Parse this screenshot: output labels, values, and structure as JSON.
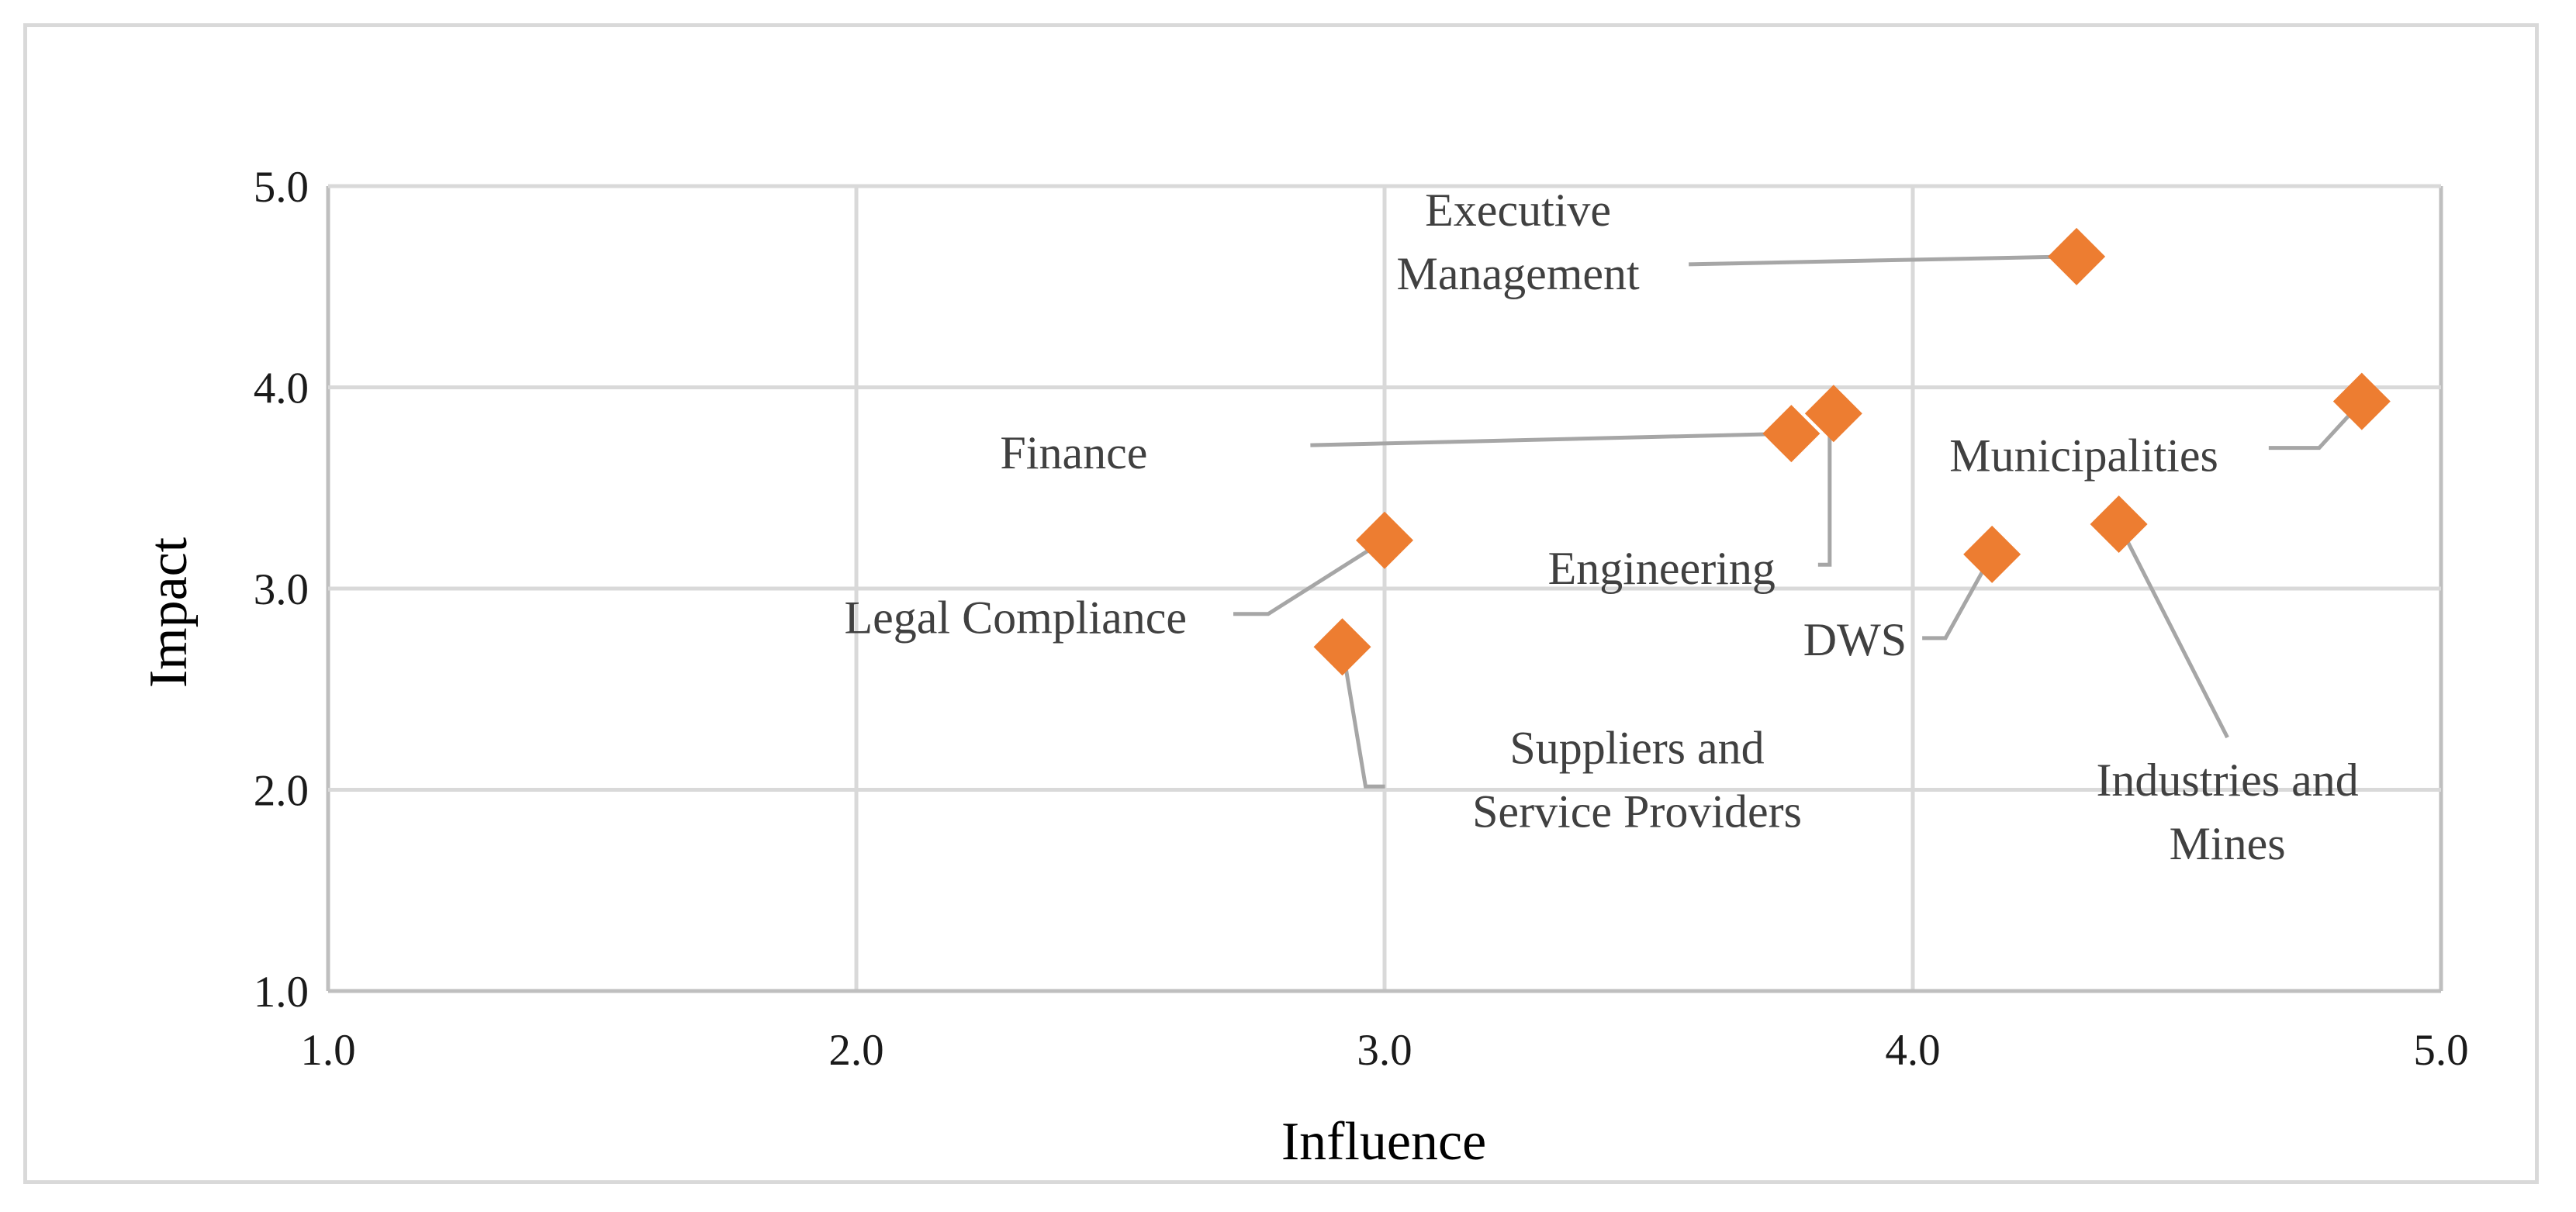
{
  "chart_data": {
    "type": "scatter",
    "title": "",
    "xlabel": "Influence",
    "ylabel": "Impact",
    "xlim": [
      1.0,
      5.0
    ],
    "ylim": [
      1.0,
      5.0
    ],
    "x_ticks": [
      "1.0",
      "2.0",
      "3.0",
      "4.0",
      "5.0"
    ],
    "y_ticks": [
      "1.0",
      "2.0",
      "3.0",
      "4.0",
      "5.0"
    ],
    "grid": true,
    "marker": "diamond",
    "marker_color": "#ed7d31",
    "points": [
      {
        "label": [
          "Executive",
          "Management"
        ],
        "x": 4.31,
        "y": 4.65
      },
      {
        "label": [
          "Finance"
        ],
        "x": 3.77,
        "y": 3.77
      },
      {
        "label": [
          "Engineering"
        ],
        "x": 3.85,
        "y": 3.87
      },
      {
        "label": [
          "Municipalities"
        ],
        "x": 4.85,
        "y": 3.93
      },
      {
        "label": [
          "Legal Compliance"
        ],
        "x": 3.0,
        "y": 3.24
      },
      {
        "label": [
          "Industries and",
          "Mines"
        ],
        "x": 4.39,
        "y": 3.32
      },
      {
        "label": [
          "DWS"
        ],
        "x": 4.15,
        "y": 3.17
      },
      {
        "label": [
          "Suppliers and",
          "Service Providers"
        ],
        "x": 2.92,
        "y": 2.71
      }
    ]
  }
}
